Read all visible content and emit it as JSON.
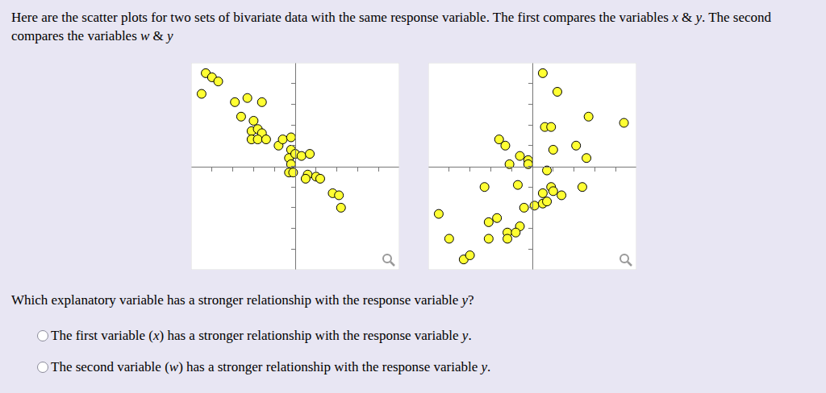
{
  "header": "Here are the scatter plots for two sets of bivariate data with the same response variable. The first compares the variables x & y. The second compares the variables w & y",
  "chart_data": [
    {
      "type": "scatter",
      "color": "#ffff33",
      "marker": "circle",
      "tick_labels": false,
      "xlim": [
        -5,
        5
      ],
      "ylim": [
        -5,
        5
      ],
      "xticks": [
        -4,
        -3,
        -2,
        -1,
        0,
        1,
        2,
        3,
        4
      ],
      "yticks": [
        -4,
        -3,
        -2,
        -1,
        0,
        1,
        2,
        3,
        4
      ],
      "x": [
        -4.3,
        -4.0,
        -3.7,
        -4.5,
        -2.9,
        -2.3,
        -1.6,
        -2.6,
        -2.0,
        -2.1,
        -1.8,
        -1.6,
        -2.1,
        -1.8,
        -1.4,
        -0.8,
        -0.6,
        -0.2,
        -0.2,
        -0.3,
        0.0,
        0.3,
        0.7,
        -0.2,
        -0.3,
        -0.1,
        0.6,
        1.0,
        1.2,
        0.5,
        1.8,
        2.1,
        2.2
      ],
      "values": [
        4.5,
        4.3,
        4.1,
        3.5,
        3.1,
        3.3,
        3.1,
        2.4,
        2.2,
        1.7,
        1.8,
        1.6,
        1.3,
        1.3,
        1.3,
        1.0,
        1.3,
        1.4,
        0.8,
        0.4,
        0.6,
        0.5,
        0.6,
        0.1,
        -0.3,
        -0.3,
        -0.4,
        -0.5,
        -0.6,
        -0.6,
        -1.3,
        -1.4,
        -2.0
      ]
    },
    {
      "type": "scatter",
      "color": "#ffff33",
      "marker": "circle",
      "tick_labels": false,
      "xlim": [
        -5,
        5
      ],
      "ylim": [
        -5,
        5
      ],
      "xticks": [
        -4,
        -3,
        -2,
        -1,
        0,
        1,
        2,
        3,
        4
      ],
      "yticks": [
        -4,
        -3,
        -2,
        -1,
        0,
        1,
        2,
        3,
        4
      ],
      "x": [
        0.5,
        1.2,
        2.7,
        4.4,
        0.6,
        0.9,
        1.0,
        2.1,
        2.6,
        -1.6,
        -1.3,
        -0.6,
        -0.2,
        -1.1,
        -0.2,
        0.7,
        -2.3,
        -0.7,
        0.9,
        0.5,
        1.4,
        1.0,
        2.4,
        -0.4,
        0.1,
        0.5,
        0.7,
        -1.7,
        -2.1,
        -0.6,
        -1.2,
        -0.8,
        -2.1,
        -1.2,
        -4.5,
        -4.0,
        -3.3,
        -3.0
      ],
      "values": [
        4.5,
        3.6,
        2.4,
        2.1,
        1.9,
        1.9,
        0.8,
        1.0,
        0.4,
        1.3,
        1.0,
        0.5,
        0.3,
        0.1,
        0.1,
        -0.2,
        -1.0,
        -0.9,
        -1.0,
        -1.3,
        -1.4,
        -1.2,
        -1.0,
        -2.0,
        -1.9,
        -1.8,
        -1.7,
        -2.5,
        -2.7,
        -2.9,
        -3.2,
        -3.2,
        -3.5,
        -3.5,
        -2.3,
        -3.5,
        -4.5,
        -4.3
      ]
    }
  ],
  "question": "Which explanatory variable has a stronger relationship with the response variable y?",
  "options": [
    "The first variable (x) has a stronger relationship with the response variable y.",
    "The second variable (w) has a stronger relationship with the response variable y."
  ]
}
